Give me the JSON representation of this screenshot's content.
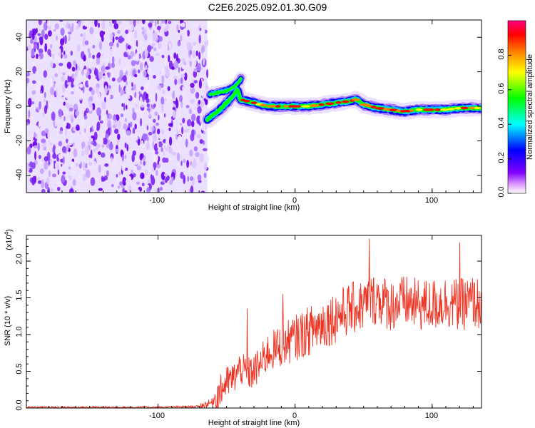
{
  "figure": {
    "title": "C2E6.2025.092.01.30.G09"
  },
  "chart_data": [
    {
      "type": "heatmap",
      "name": "spectrogram",
      "xlabel": "Height of straight line (km)",
      "ylabel": "Frequency (Hz)",
      "xlim": [
        -196,
        136
      ],
      "ylim": [
        -50,
        50
      ],
      "xticks": [
        -100,
        0,
        100
      ],
      "yticks": [
        -40,
        -20,
        0,
        20,
        40
      ],
      "xtick_labels": [
        "-100",
        "0",
        "100"
      ],
      "ytick_labels": [
        "-40",
        "-20",
        "0",
        "20",
        "40"
      ],
      "noise_region_x": [
        -196,
        -64
      ],
      "colorbar": {
        "label": "Normalized spectral amplitude",
        "range": [
          0,
          1
        ],
        "ticks": [
          0.0,
          0.2,
          0.4,
          0.6,
          0.8
        ],
        "tick_labels": [
          "0.0",
          "0.2",
          "0.4",
          "0.6",
          "0.8"
        ],
        "colors": [
          "#ffffff",
          "#8000ff",
          "#0000ff",
          "#00ffff",
          "#00ff00",
          "#ffff00",
          "#ff8000",
          "#ff0000",
          "#ff00a0"
        ]
      },
      "signal_trace": {
        "x": [
          -64,
          -60,
          -55,
          -50,
          -45,
          -42,
          -40,
          -35,
          -30,
          -20,
          -10,
          0,
          10,
          20,
          30,
          40,
          45,
          50,
          60,
          70,
          80,
          90,
          100,
          110,
          120,
          130,
          136
        ],
        "y": [
          -8,
          -5,
          -2,
          2,
          6,
          10,
          4,
          3,
          2,
          0,
          0,
          0,
          0,
          1,
          2,
          3,
          4,
          1,
          -1,
          -2,
          -3,
          -2,
          -2,
          -2,
          -1,
          -1,
          -1
        ]
      },
      "secondary_trace": {
        "x": [
          -62,
          -56,
          -50,
          -45,
          -41,
          -39
        ],
        "y": [
          7,
          8,
          9,
          11,
          14,
          17
        ]
      }
    },
    {
      "type": "line",
      "name": "snr",
      "xlabel": "Height of straight line (km)",
      "ylabel": "SNR (10 * v/v)",
      "multiplier_label": "(x10",
      "multiplier_exponent": "4",
      "multiplier_close": ")",
      "xlim": [
        -196,
        136
      ],
      "ylim": [
        0,
        2.35
      ],
      "xticks": [
        -100,
        0,
        100
      ],
      "yticks": [
        0.0,
        0.5,
        1.0,
        1.5,
        2.0
      ],
      "xtick_labels": [
        "-100",
        "0",
        "100"
      ],
      "ytick_labels": [
        "0.0",
        "0.5",
        "1.0",
        "1.5",
        "2.0"
      ],
      "color": "#ee3322",
      "series": [
        {
          "x": [
            -196,
            -150,
            -100,
            -70,
            -60,
            -50,
            -45,
            -40,
            -35,
            -30,
            -25,
            -20,
            -10,
            0,
            10,
            20,
            30,
            40,
            50,
            55,
            60,
            70,
            80,
            90,
            100,
            110,
            120,
            130,
            136
          ],
          "y": [
            0.01,
            0.01,
            0.01,
            0.02,
            0.08,
            0.35,
            0.4,
            0.55,
            0.45,
            0.5,
            0.6,
            0.75,
            0.85,
            0.95,
            1.05,
            1.15,
            1.25,
            1.35,
            1.4,
            1.45,
            1.5,
            1.4,
            1.45,
            1.4,
            1.4,
            1.45,
            1.4,
            1.45,
            1.4
          ]
        }
      ],
      "peaks": [
        {
          "x": -35,
          "y": 1.35
        },
        {
          "x": -9,
          "y": 1.55
        },
        {
          "x": 54,
          "y": 2.3
        },
        {
          "x": 120,
          "y": 2.25
        }
      ]
    }
  ]
}
